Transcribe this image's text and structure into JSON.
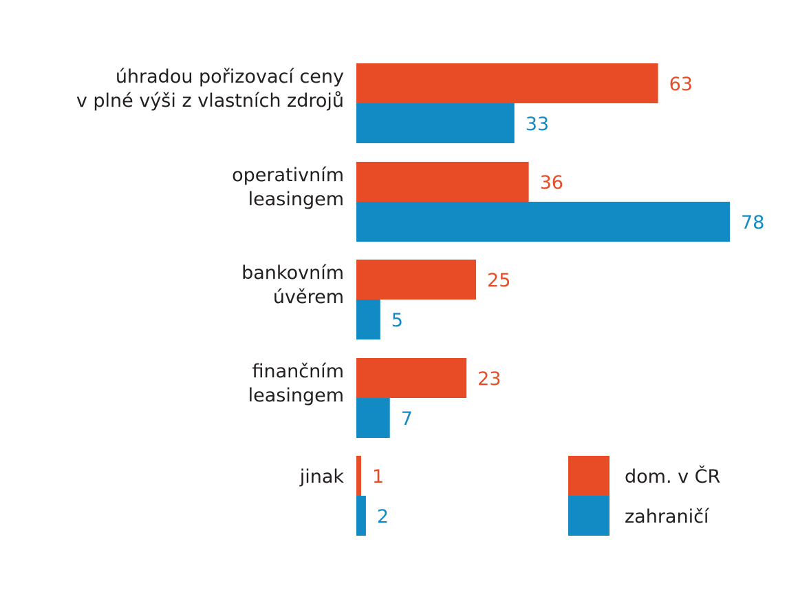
{
  "chart_data": {
    "type": "bar",
    "orientation": "horizontal",
    "categories": [
      [
        "úhradou pořizovací ceny",
        "v plné výši z vlastních zdrojů"
      ],
      [
        "operativním",
        "leasingem"
      ],
      [
        "bankovním",
        "úvěrem"
      ],
      [
        "finančním",
        "leasingem"
      ],
      [
        "jinak"
      ]
    ],
    "series": [
      {
        "name": "dom. v ČR",
        "color": "#e84c27",
        "values": [
          63,
          36,
          25,
          23,
          1
        ]
      },
      {
        "name": "zahraničí",
        "color": "#128bc4",
        "values": [
          33,
          78,
          5,
          7,
          2
        ]
      }
    ],
    "legend_position": "bottom-right",
    "xlim": [
      0,
      78
    ]
  }
}
